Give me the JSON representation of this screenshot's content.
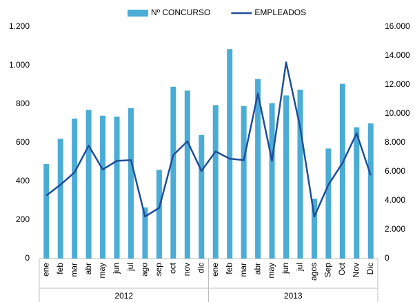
{
  "chart_data": {
    "type": "bar_line",
    "categories": [
      "ene",
      "feb",
      "mar",
      "abr",
      "may",
      "jun",
      "jul",
      "ago",
      "sep",
      "oct",
      "nov",
      "dic",
      "ene",
      "feb",
      "mar",
      "abr",
      "may",
      "jun",
      "jul",
      "agos",
      "Sep",
      "Oct",
      "Nov",
      "Dic"
    ],
    "x_groups": [
      "2012",
      "2013"
    ],
    "series": [
      {
        "name": "Nº CONCURSO",
        "type": "bar",
        "color": "#4bacd6",
        "values": [
          490,
          620,
          725,
          770,
          740,
          735,
          780,
          265,
          460,
          890,
          870,
          640,
          795,
          1085,
          790,
          930,
          805,
          845,
          875,
          310,
          570,
          905,
          680,
          700
        ]
      },
      {
        "name": "EMPLEADOS",
        "type": "line",
        "axis": "y2",
        "color": "#1f4e99",
        "values": [
          4350,
          5100,
          5950,
          7800,
          6150,
          6750,
          6800,
          2900,
          3500,
          7150,
          8100,
          6050,
          7400,
          6900,
          6800,
          11400,
          6750,
          13550,
          9050,
          2900,
          5100,
          6600,
          8650,
          5750
        ]
      }
    ],
    "ylim": [
      0,
      1200
    ],
    "yticks": [
      0,
      200,
      400,
      600,
      800,
      {
        "value": 1000,
        "label": "1.000"
      },
      {
        "value": 1200,
        "label": "1.200"
      }
    ],
    "y2lim": [
      0,
      16000
    ],
    "y2ticks": [
      0,
      {
        "value": 2000,
        "label": "2.000"
      },
      {
        "value": 4000,
        "label": "4.000"
      },
      {
        "value": 6000,
        "label": "6.000"
      },
      {
        "value": 8000,
        "label": "8.000"
      },
      {
        "value": 10000,
        "label": "10.000"
      },
      {
        "value": 12000,
        "label": "12.000"
      },
      {
        "value": 14000,
        "label": "14.000"
      },
      {
        "value": 16000,
        "label": "16.000"
      }
    ],
    "legend": "top",
    "grid": false
  }
}
